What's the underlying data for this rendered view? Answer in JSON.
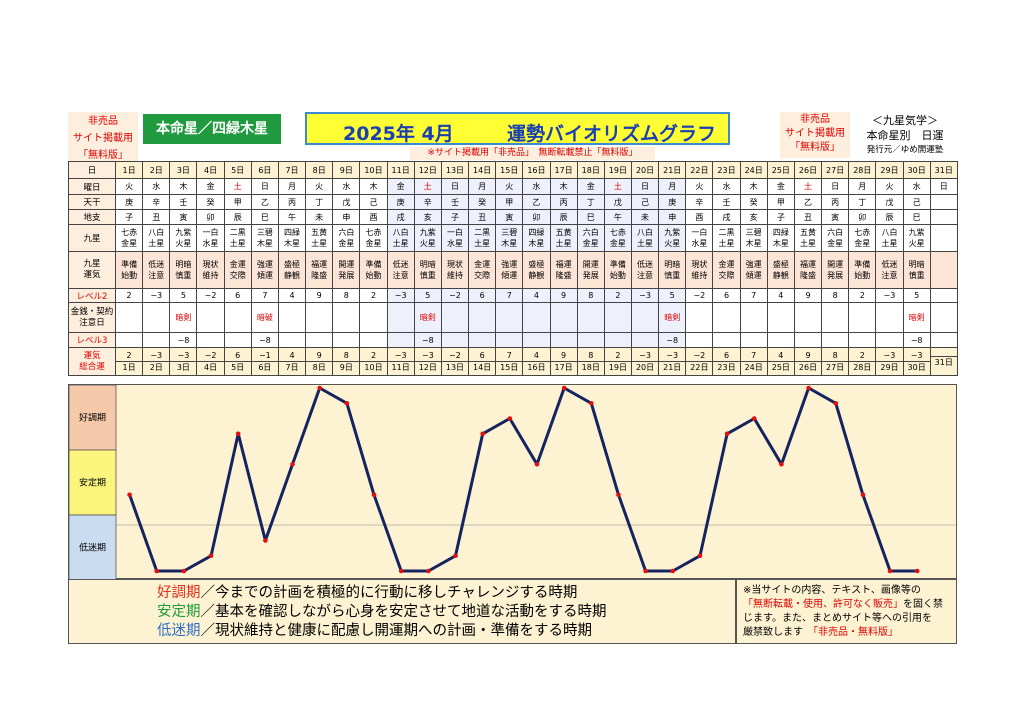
{
  "header": {
    "nonsale_left": [
      "非売品",
      "サイト掲載用",
      "「無料版」"
    ],
    "honmei": "本命星／四緑木星",
    "title_year": "2025年 4月",
    "title_main": "運勢バイオリズムグラフ",
    "nonsale_right": [
      "非売品",
      "サイト掲載用",
      "「無料版」"
    ],
    "kyusei": [
      "＜九星気学＞",
      "本命星別　日運"
    ],
    "publisher": "発行元／ゆめ開運塾",
    "notice": "※サイト掲載用「非売品」　無断転載禁止「無料版」"
  },
  "table": {
    "row_labels": {
      "day": "日",
      "weekday": "曜日",
      "tenkan": "天干",
      "chishi": "地支",
      "kyusei": "九星",
      "unki": [
        "九星",
        "運気"
      ],
      "level2": "レベル2",
      "kinsen": [
        "金銭・契約",
        "注意日"
      ],
      "level3": "レベル3",
      "total": [
        "運気",
        "総合運"
      ]
    },
    "days": [
      "1日",
      "2日",
      "3日",
      "4日",
      "5日",
      "6日",
      "7日",
      "8日",
      "9日",
      "10日",
      "11日",
      "12日",
      "13日",
      "14日",
      "15日",
      "16日",
      "17日",
      "18日",
      "19日",
      "20日",
      "21日",
      "22日",
      "23日",
      "24日",
      "25日",
      "26日",
      "27日",
      "28日",
      "29日",
      "30日",
      "31日"
    ],
    "weekday": [
      "火",
      "水",
      "木",
      "金",
      "土",
      "日",
      "月",
      "火",
      "水",
      "木",
      "金",
      "土",
      "日",
      "月",
      "火",
      "水",
      "木",
      "金",
      "土",
      "日",
      "月",
      "火",
      "水",
      "木",
      "金",
      "土",
      "日",
      "月",
      "火",
      "水",
      "日"
    ],
    "weekday_red": [
      5,
      12,
      19,
      26
    ],
    "tenkan": [
      "庚",
      "辛",
      "壬",
      "癸",
      "甲",
      "乙",
      "丙",
      "丁",
      "戊",
      "己",
      "庚",
      "辛",
      "壬",
      "癸",
      "甲",
      "乙",
      "丙",
      "丁",
      "戊",
      "己",
      "庚",
      "辛",
      "壬",
      "癸",
      "甲",
      "乙",
      "丙",
      "丁",
      "戊",
      "己",
      ""
    ],
    "chishi": [
      "子",
      "丑",
      "寅",
      "卯",
      "辰",
      "巳",
      "午",
      "未",
      "申",
      "酉",
      "戌",
      "亥",
      "子",
      "丑",
      "寅",
      "卯",
      "辰",
      "巳",
      "午",
      "未",
      "申",
      "酉",
      "戌",
      "亥",
      "子",
      "丑",
      "寅",
      "卯",
      "辰",
      "巳",
      ""
    ],
    "kyusei": [
      [
        "七赤",
        "金星"
      ],
      [
        "八白",
        "土星"
      ],
      [
        "九紫",
        "火星"
      ],
      [
        "一白",
        "水星"
      ],
      [
        "二黒",
        "土星"
      ],
      [
        "三碧",
        "木星"
      ],
      [
        "四緑",
        "木星"
      ],
      [
        "五黄",
        "土星"
      ],
      [
        "六白",
        "金星"
      ],
      [
        "七赤",
        "金星"
      ],
      [
        "八白",
        "土星"
      ],
      [
        "九紫",
        "火星"
      ],
      [
        "一白",
        "水星"
      ],
      [
        "二黒",
        "土星"
      ],
      [
        "三碧",
        "木星"
      ],
      [
        "四緑",
        "木星"
      ],
      [
        "五黄",
        "土星"
      ],
      [
        "六白",
        "金星"
      ],
      [
        "七赤",
        "金星"
      ],
      [
        "八白",
        "土星"
      ],
      [
        "九紫",
        "火星"
      ],
      [
        "一白",
        "水星"
      ],
      [
        "二黒",
        "土星"
      ],
      [
        "三碧",
        "木星"
      ],
      [
        "四緑",
        "木星"
      ],
      [
        "五黄",
        "土星"
      ],
      [
        "六白",
        "金星"
      ],
      [
        "七赤",
        "金星"
      ],
      [
        "八白",
        "土星"
      ],
      [
        "九紫",
        "火星"
      ],
      [
        "",
        ""
      ]
    ],
    "unki": [
      [
        "準備",
        "始動"
      ],
      [
        "低迷",
        "注意"
      ],
      [
        "明暗",
        "慎重"
      ],
      [
        "現状",
        "維持"
      ],
      [
        "金運",
        "交際"
      ],
      [
        "強運",
        "傾運"
      ],
      [
        "盛極",
        "静観"
      ],
      [
        "福運",
        "隆盛"
      ],
      [
        "開運",
        "発展"
      ],
      [
        "準備",
        "始動"
      ],
      [
        "低迷",
        "注意"
      ],
      [
        "明暗",
        "慎重"
      ],
      [
        "現状",
        "維持"
      ],
      [
        "金運",
        "交際"
      ],
      [
        "強運",
        "傾運"
      ],
      [
        "盛極",
        "静観"
      ],
      [
        "福運",
        "隆盛"
      ],
      [
        "開運",
        "発展"
      ],
      [
        "準備",
        "始動"
      ],
      [
        "低迷",
        "注意"
      ],
      [
        "明暗",
        "慎重"
      ],
      [
        "現状",
        "維持"
      ],
      [
        "金運",
        "交際"
      ],
      [
        "強運",
        "傾運"
      ],
      [
        "盛極",
        "静観"
      ],
      [
        "福運",
        "隆盛"
      ],
      [
        "開運",
        "発展"
      ],
      [
        "準備",
        "始動"
      ],
      [
        "低迷",
        "注意"
      ],
      [
        "明暗",
        "慎重"
      ],
      [
        "",
        ""
      ]
    ],
    "level2": [
      "2",
      "−3",
      "5",
      "−2",
      "6",
      "7",
      "4",
      "9",
      "8",
      "2",
      "−3",
      "5",
      "−2",
      "6",
      "7",
      "4",
      "9",
      "8",
      "2",
      "−3",
      "5",
      "−2",
      "6",
      "7",
      "4",
      "9",
      "8",
      "2",
      "−3",
      "5",
      ""
    ],
    "kinsen": [
      "",
      "",
      "暗剣",
      "",
      "",
      "暗破",
      "",
      "",
      "",
      "",
      "",
      "暗剣",
      "",
      "",
      "",
      "",
      "",
      "",
      "",
      "",
      "暗剣",
      "",
      "",
      "",
      "",
      "",
      "",
      "",
      "",
      "暗剣",
      ""
    ],
    "level3": [
      "",
      "",
      "−8",
      "",
      "",
      "−8",
      "",
      "",
      "",
      "",
      "",
      "−8",
      "",
      "",
      "",
      "",
      "",
      "",
      "",
      "",
      "−8",
      "",
      "",
      "",
      "",
      "",
      "",
      "",
      "",
      "−8",
      ""
    ],
    "total": [
      "2",
      "−3",
      "−3",
      "−2",
      "6",
      "−1",
      "4",
      "9",
      "8",
      "2",
      "−3",
      "−3",
      "−2",
      "6",
      "7",
      "4",
      "9",
      "8",
      "2",
      "−3",
      "−3",
      "−2",
      "6",
      "7",
      "4",
      "9",
      "8",
      "2",
      "−3",
      "−3",
      ""
    ]
  },
  "chart_labels": [
    "好調期",
    "安定期",
    "低迷期"
  ],
  "legend": [
    {
      "term": "好調期",
      "rest": "／今までの計画を積極的に行動に移しチャレンジする時期",
      "color": "#e0301e"
    },
    {
      "term": "安定期",
      "rest": "／基本を確認しながら心身を安定させて地道な活動をする時期",
      "color": "#1e9c3a"
    },
    {
      "term": "低迷期",
      "rest": "／現状維持と健康に配慮し開運期への計画・準備をする時期",
      "color": "#2f6fc8"
    }
  ],
  "note": {
    "line1": "※当サイトの内容、テキスト、画像等の",
    "line2_red": "「無断転載・使用、許可なく販売」",
    "line2_rest": "を固く禁",
    "line3": "じます。また、まとめサイト等への引用を",
    "line4": "厳禁致します",
    "line4_red": "「非売品・無料版」"
  },
  "chart_data": {
    "type": "line",
    "categories": [
      "1",
      "2",
      "3",
      "4",
      "5",
      "6",
      "7",
      "8",
      "9",
      "10",
      "11",
      "12",
      "13",
      "14",
      "15",
      "16",
      "17",
      "18",
      "19",
      "20",
      "21",
      "22",
      "23",
      "24",
      "25",
      "26",
      "27",
      "28",
      "29",
      "30"
    ],
    "series": [
      {
        "values": [
          2,
          -3,
          -3,
          -2,
          6,
          -1,
          4,
          9,
          8,
          2,
          -3,
          -3,
          -2,
          6,
          7,
          4,
          9,
          8,
          2,
          -3,
          -3,
          -2,
          6,
          7,
          4,
          9,
          8,
          2,
          -3,
          -3
        ]
      }
    ],
    "ylim": [
      -3,
      9
    ],
    "bands": [
      "好調期",
      "安定期",
      "低迷期"
    ],
    "line_color": "#15235e",
    "marker_color": "#e01010"
  }
}
